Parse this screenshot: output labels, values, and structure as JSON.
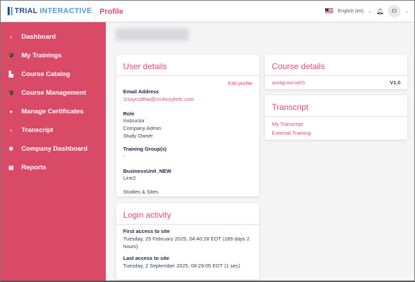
{
  "header": {
    "logo": {
      "brand_dark": "TRIAL",
      "brand_light": "INTERACTIVE"
    },
    "breadcrumb": "Profile",
    "language": "English (en)",
    "avatar_initials": "CI",
    "flag": "us-flag-icon"
  },
  "sidebar": {
    "items": [
      {
        "label": "Dashboard",
        "icon": "chevron-right-icon",
        "glyph": "›"
      },
      {
        "label": "My Trainings",
        "icon": "graduation-cap-icon",
        "glyph": "🎓"
      },
      {
        "label": "Course Catalog",
        "icon": "catalog-icon",
        "glyph": "▙"
      },
      {
        "label": "Course Management",
        "icon": "graduation-cap-icon",
        "glyph": "🎓"
      },
      {
        "label": "Manage Certificates",
        "icon": "circle-icon",
        "glyph": "●"
      },
      {
        "label": "Transcript",
        "icon": "chevron-right-icon",
        "glyph": "›"
      },
      {
        "label": "Company Dashboard",
        "icon": "gear-icon",
        "glyph": "✱"
      },
      {
        "label": "Reports",
        "icon": "list-icon",
        "glyph": "▤"
      }
    ]
  },
  "user_details": {
    "title": "User details",
    "edit": "Edit profile",
    "email_label": "Email Address",
    "email": "1rsxynz8hw@cmhvzylmfc.com",
    "role_label": "Role",
    "roles": [
      "Instructor",
      "Company Admin",
      "Study Owner"
    ],
    "group_label": "Training Group(s)",
    "group_value": "-",
    "bu_label": "BusinessUnit_NEW",
    "bu_value": "Line2",
    "studies": "Studies & Sites"
  },
  "login_activity": {
    "title": "Login activity",
    "first_label": "First access to site",
    "first_value": "Tuesday, 25 February 2025, 04:40:28 EDT  (189 days 2 hours)",
    "last_label": "Last access to site",
    "last_value": "Tuesday, 2 September 2025, 08:29:05 EDT  (1 sec)"
  },
  "course_details": {
    "title": "Course details",
    "course": "assigcourse01",
    "version": "V1.0"
  },
  "transcript": {
    "title": "Transcript",
    "links": [
      "My Transcript",
      "External Training"
    ]
  },
  "colors": {
    "accent": "#d94a66",
    "navy": "#1e2143"
  }
}
